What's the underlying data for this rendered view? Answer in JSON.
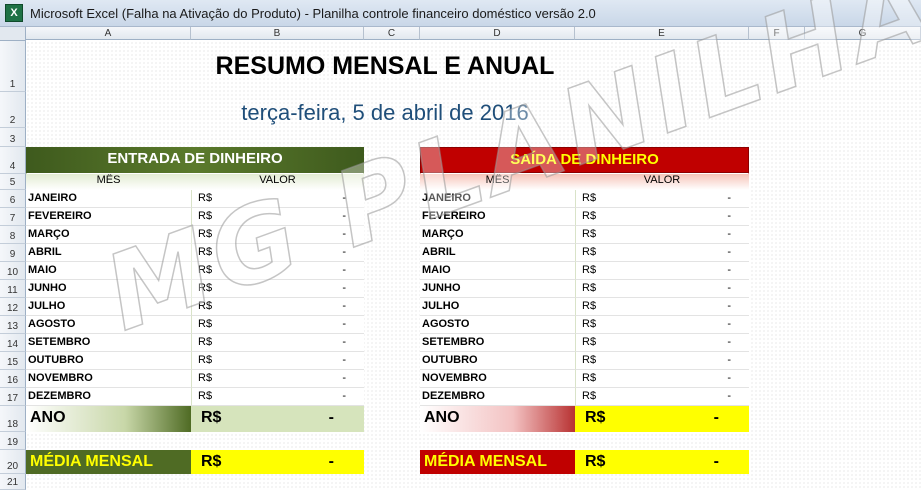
{
  "window": {
    "title": "Microsoft Excel (Falha na Ativação do Produto) - Planilha controle financeiro doméstico versão 2.0",
    "app_icon": "X"
  },
  "columns": [
    "A",
    "B",
    "C",
    "D",
    "E",
    "F",
    "G"
  ],
  "rows": [
    "1",
    "2",
    "3",
    "4",
    "5",
    "6",
    "7",
    "8",
    "9",
    "10",
    "11",
    "12",
    "13",
    "14",
    "15",
    "16",
    "17",
    "18",
    "19",
    "20",
    "21"
  ],
  "sheet": {
    "title": "RESUMO MENSAL E ANUAL",
    "date": "terça-feira, 5 de abril de 2016",
    "watermark": "MG PLANILHAS",
    "entrada": {
      "header": "ENTRADA DE DINHEIRO",
      "col_mes": "MÊS",
      "col_valor": "VALOR",
      "months": [
        "JANEIRO",
        "FEVEREIRO",
        "MARÇO",
        "ABRIL",
        "MAIO",
        "JUNHO",
        "JULHO",
        "AGOSTO",
        "SETEMBRO",
        "OUTUBRO",
        "NOVEMBRO",
        "DEZEMBRO"
      ],
      "currency": "R$",
      "value": "-",
      "ano_label": "ANO",
      "ano_currency": "R$",
      "ano_value": "-",
      "media_label": "MÉDIA MENSAL",
      "media_currency": "R$",
      "media_value": "-"
    },
    "saida": {
      "header": "SAÍDA DE DINHEIRO",
      "col_mes": "MÊS",
      "col_valor": "VALOR",
      "months": [
        "JANEIRO",
        "FEVEREIRO",
        "MARÇO",
        "ABRIL",
        "MAIO",
        "JUNHO",
        "JULHO",
        "AGOSTO",
        "SETEMBRO",
        "OUTUBRO",
        "NOVEMBRO",
        "DEZEMBRO"
      ],
      "currency": "R$",
      "value": "-",
      "ano_label": "ANO",
      "ano_currency": "R$",
      "ano_value": "-",
      "media_label": "MÉDIA MENSAL",
      "media_currency": "R$",
      "media_value": "-"
    }
  },
  "colors": {
    "green_header": "#4f6b24",
    "red_header": "#c00000",
    "yellow": "#ffff00"
  }
}
